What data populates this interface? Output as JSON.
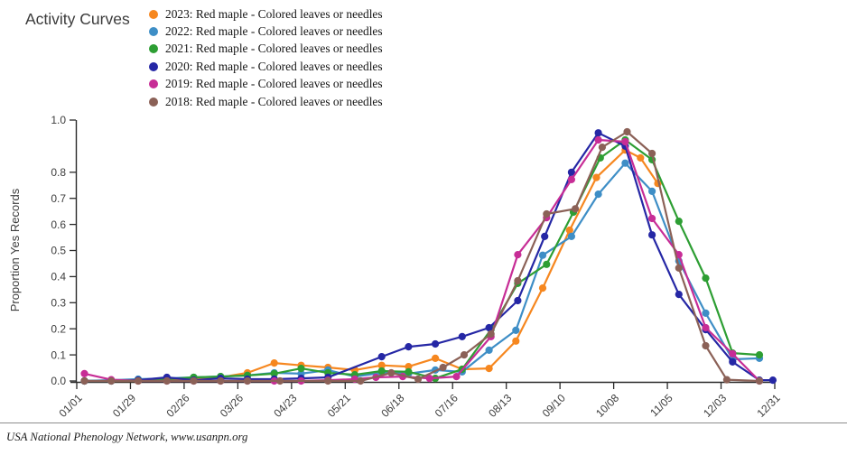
{
  "title": "Activity Curves",
  "footer": {
    "source": "USA National Phenology Network, www.usanpn.org"
  },
  "chart_data": {
    "type": "line",
    "title": "Activity Curves",
    "xlabel": "",
    "ylabel": "Proportion Yes Records",
    "ylim": [
      0,
      1.0
    ],
    "grid": false,
    "legend_position": "top-left",
    "x_ticks": {
      "labels": [
        "01/01",
        "01/29",
        "02/26",
        "03/26",
        "04/23",
        "05/21",
        "06/18",
        "07/16",
        "08/13",
        "09/10",
        "10/08",
        "11/05",
        "12/03",
        "12/31"
      ],
      "day_of_year": [
        1,
        29,
        57,
        85,
        113,
        141,
        169,
        197,
        225,
        253,
        281,
        309,
        337,
        365
      ]
    },
    "y_ticks": [
      0,
      0.1,
      0.2,
      0.3,
      0.4,
      0.5,
      0.6,
      0.7,
      0.8,
      1.0
    ],
    "x_unit": "day of year",
    "series": [
      {
        "year": "2023",
        "label": "2023: Red maple - Colored leaves or needles",
        "color": "#f6871f",
        "points": [
          [
            5,
            0
          ],
          [
            19,
            0
          ],
          [
            33,
            0
          ],
          [
            48,
            0.003
          ],
          [
            62,
            0.007
          ],
          [
            76,
            0.014
          ],
          [
            90,
            0.031
          ],
          [
            104,
            0.069
          ],
          [
            118,
            0.06
          ],
          [
            132,
            0.052
          ],
          [
            146,
            0.042
          ],
          [
            160,
            0.06
          ],
          [
            174,
            0.055
          ],
          [
            188,
            0.087
          ],
          [
            202,
            0.045
          ],
          [
            216,
            0.048
          ],
          [
            230,
            0.153
          ],
          [
            244,
            0.356
          ],
          [
            258,
            0.578
          ],
          [
            272,
            0.78
          ],
          [
            287,
            0.885
          ],
          [
            295,
            0.855
          ],
          [
            304,
            0.757
          ]
        ]
      },
      {
        "year": "2022",
        "label": "2022: Red maple - Colored leaves or needles",
        "color": "#3e8ec6",
        "points": [
          [
            5,
            0
          ],
          [
            19,
            0.003
          ],
          [
            33,
            0.007
          ],
          [
            48,
            0.01
          ],
          [
            62,
            0.014
          ],
          [
            76,
            0.017
          ],
          [
            90,
            0.021
          ],
          [
            104,
            0.031
          ],
          [
            118,
            0.028
          ],
          [
            132,
            0.042
          ],
          [
            146,
            0.017
          ],
          [
            160,
            0.031
          ],
          [
            174,
            0.028
          ],
          [
            188,
            0.042
          ],
          [
            202,
            0.035
          ],
          [
            216,
            0.118
          ],
          [
            230,
            0.194
          ],
          [
            244,
            0.482
          ],
          [
            259,
            0.554
          ],
          [
            273,
            0.716
          ],
          [
            287,
            0.835
          ],
          [
            301,
            0.727
          ],
          [
            315,
            0.46
          ],
          [
            329,
            0.26
          ],
          [
            343,
            0.083
          ],
          [
            357,
            0.087
          ]
        ]
      },
      {
        "year": "2021",
        "label": "2021: Red maple - Colored leaves or needles",
        "color": "#2d9e33",
        "points": [
          [
            5,
            0
          ],
          [
            19,
            0
          ],
          [
            33,
            0.003
          ],
          [
            48,
            0.007
          ],
          [
            62,
            0.014
          ],
          [
            76,
            0.017
          ],
          [
            90,
            0.021
          ],
          [
            104,
            0.028
          ],
          [
            118,
            0.048
          ],
          [
            132,
            0.031
          ],
          [
            146,
            0.024
          ],
          [
            160,
            0.038
          ],
          [
            174,
            0.035
          ],
          [
            188,
            0.01
          ],
          [
            202,
            0.045
          ],
          [
            217,
            0.197
          ],
          [
            231,
            0.374
          ],
          [
            246,
            0.447
          ],
          [
            260,
            0.647
          ],
          [
            274,
            0.855
          ],
          [
            287,
            0.924
          ],
          [
            301,
            0.848
          ],
          [
            315,
            0.612
          ],
          [
            329,
            0.394
          ],
          [
            343,
            0.107
          ],
          [
            357,
            0.1
          ]
        ]
      },
      {
        "year": "2020",
        "label": "2020: Red maple - Colored leaves or needles",
        "color": "#2527a5",
        "points": [
          [
            5,
            0
          ],
          [
            19,
            0
          ],
          [
            33,
            0.003
          ],
          [
            48,
            0.014
          ],
          [
            62,
            0.003
          ],
          [
            76,
            0.01
          ],
          [
            90,
            0.007
          ],
          [
            104,
            0.007
          ],
          [
            118,
            0.01
          ],
          [
            132,
            0.014
          ],
          [
            160,
            0.093
          ],
          [
            174,
            0.131
          ],
          [
            188,
            0.142
          ],
          [
            202,
            0.17
          ],
          [
            216,
            0.204
          ],
          [
            231,
            0.308
          ],
          [
            245,
            0.554
          ],
          [
            259,
            0.8
          ],
          [
            273,
            0.951
          ],
          [
            287,
            0.9
          ],
          [
            301,
            0.56
          ],
          [
            315,
            0.332
          ],
          [
            329,
            0.197
          ],
          [
            343,
            0.073
          ],
          [
            357,
            0.003
          ],
          [
            364,
            0.003
          ]
        ]
      },
      {
        "year": "2019",
        "label": "2019: Red maple - Colored leaves or needles",
        "color": "#c72d96",
        "points": [
          [
            5,
            0.028
          ],
          [
            19,
            0.005
          ],
          [
            33,
            0
          ],
          [
            48,
            0
          ],
          [
            62,
            0
          ],
          [
            76,
            0
          ],
          [
            90,
            0
          ],
          [
            104,
            0
          ],
          [
            118,
            0
          ],
          [
            132,
            0.003
          ],
          [
            146,
            0.007
          ],
          [
            157,
            0.014
          ],
          [
            171,
            0.017
          ],
          [
            185,
            0.01
          ],
          [
            199,
            0.017
          ],
          [
            217,
            0.17
          ],
          [
            231,
            0.484
          ],
          [
            246,
            0.626
          ],
          [
            259,
            0.772
          ],
          [
            273,
            0.924
          ],
          [
            287,
            0.917
          ],
          [
            301,
            0.623
          ],
          [
            315,
            0.484
          ],
          [
            329,
            0.204
          ],
          [
            343,
            0.104
          ],
          [
            357,
            0
          ]
        ]
      },
      {
        "year": "2018",
        "label": "2018: Red maple - Colored leaves or needles",
        "color": "#8b6157",
        "points": [
          [
            5,
            0
          ],
          [
            19,
            0
          ],
          [
            33,
            0
          ],
          [
            48,
            0
          ],
          [
            62,
            0
          ],
          [
            76,
            0
          ],
          [
            90,
            0
          ],
          [
            107,
            0
          ],
          [
            132,
            0
          ],
          [
            149,
            0
          ],
          [
            165,
            0.031
          ],
          [
            179,
            0.007
          ],
          [
            192,
            0.052
          ],
          [
            203,
            0.1
          ],
          [
            217,
            0.18
          ],
          [
            231,
            0.384
          ],
          [
            246,
            0.64
          ],
          [
            261,
            0.66
          ],
          [
            275,
            0.896
          ],
          [
            288,
            0.955
          ],
          [
            301,
            0.872
          ],
          [
            315,
            0.433
          ],
          [
            329,
            0.135
          ],
          [
            340,
            0.005
          ],
          [
            357,
            0
          ]
        ]
      }
    ]
  }
}
